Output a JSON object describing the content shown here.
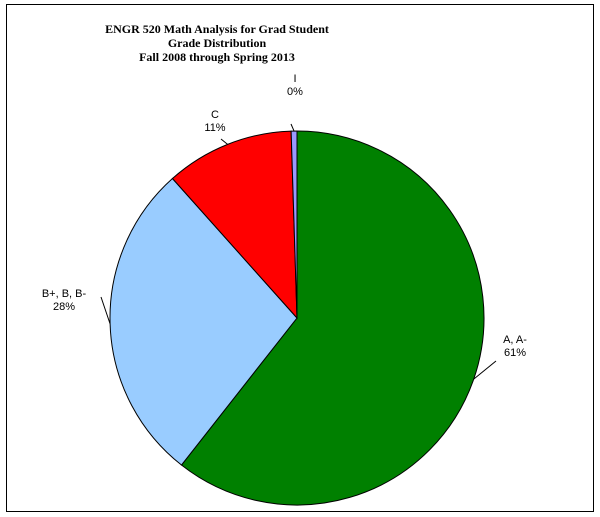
{
  "chart_data": {
    "type": "pie",
    "title": "ENGR 520 Math Analysis for Grad Student\nGrade Distribution\nFall 2008 through Spring 2013",
    "title_lines": [
      "ENGR 520 Math Analysis for Grad Student",
      "Grade Distribution",
      "Fall 2008 through Spring 2013"
    ],
    "slices": [
      {
        "label": "A, A-",
        "pct_label": "61%",
        "value": 60.6,
        "color": "#008000"
      },
      {
        "label": "B+, B, B-",
        "pct_label": "28%",
        "value": 27.8,
        "color": "#99CCFF"
      },
      {
        "label": "C",
        "pct_label": "11%",
        "value": 11.1,
        "color": "#FF0000"
      },
      {
        "label": "I",
        "pct_label": "0%",
        "value": 0.5,
        "color": "#9999FF"
      }
    ],
    "start_angle_deg": 0,
    "direction": "clockwise",
    "legend": "none",
    "border": true
  }
}
